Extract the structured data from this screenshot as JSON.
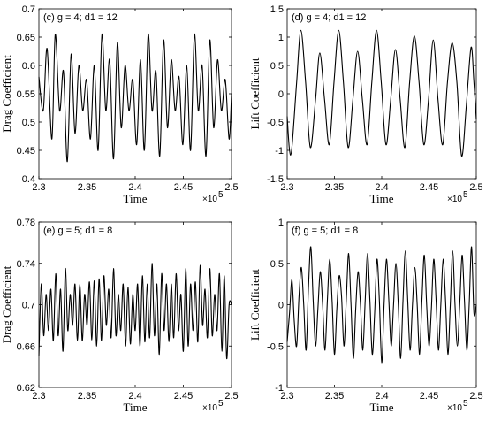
{
  "chart_data": [
    {
      "type": "line",
      "panel_label": "(c) g = 4; d1 = 12",
      "xlabel": "Time",
      "ylabel": "Drag Coefficient",
      "xlim": [
        2.3,
        2.5
      ],
      "ylim": [
        0.4,
        0.7
      ],
      "x_multiplier": "×10",
      "x_exponent": "5",
      "xticks": [
        "2.3",
        "2.35",
        "2.4",
        "2.45",
        "2.5"
      ],
      "yticks": [
        "0.4",
        "0.45",
        "0.5",
        "0.55",
        "0.6",
        "0.65",
        "0.7"
      ],
      "series": [
        {
          "x": [
            2.3,
            2.3045,
            2.3085,
            2.3135,
            2.317,
            2.3215,
            2.3255,
            2.3295,
            2.3335,
            2.3375,
            2.3415,
            2.3455,
            2.3495,
            2.3535,
            2.3575,
            2.3615,
            2.3655,
            2.3695,
            2.3735,
            2.3775,
            2.3815,
            2.3855,
            2.3895,
            2.3935,
            2.3975,
            2.4015,
            2.4055,
            2.4095,
            2.4135,
            2.4175,
            2.4215,
            2.4255,
            2.4295,
            2.4335,
            2.4375,
            2.4415,
            2.4455,
            2.4495,
            2.4535,
            2.4575,
            2.4615,
            2.4655,
            2.4695,
            2.4735,
            2.4775,
            2.4815,
            2.4855,
            2.4895,
            2.4935,
            2.4975,
            2.5
          ],
          "y": [
            0.58,
            0.52,
            0.63,
            0.47,
            0.655,
            0.52,
            0.59,
            0.43,
            0.62,
            0.48,
            0.6,
            0.52,
            0.575,
            0.47,
            0.6,
            0.45,
            0.655,
            0.52,
            0.61,
            0.435,
            0.64,
            0.49,
            0.6,
            0.52,
            0.575,
            0.46,
            0.61,
            0.45,
            0.655,
            0.52,
            0.59,
            0.44,
            0.645,
            0.49,
            0.61,
            0.52,
            0.58,
            0.46,
            0.6,
            0.45,
            0.655,
            0.52,
            0.6,
            0.44,
            0.645,
            0.49,
            0.61,
            0.52,
            0.575,
            0.47,
            0.55
          ]
        }
      ]
    },
    {
      "type": "line",
      "panel_label": "(d) g = 4; d1 = 12",
      "xlabel": "Time",
      "ylabel": "Lift Coefficient",
      "xlim": [
        2.3,
        2.5
      ],
      "ylim": [
        -1.5,
        1.5
      ],
      "x_multiplier": "×10",
      "x_exponent": "5",
      "xticks": [
        "2.3",
        "2.35",
        "2.4",
        "2.45",
        "2.5"
      ],
      "yticks": [
        "-1.5",
        "-1",
        "-0.5",
        "0",
        "0.5",
        "1",
        "1.5"
      ],
      "series": [
        {
          "x": [
            2.3,
            2.3025,
            2.305,
            2.31,
            2.3145,
            2.3195,
            2.3245,
            2.33,
            2.3345,
            2.3395,
            2.3445,
            2.3495,
            2.3545,
            2.3595,
            2.3645,
            2.3695,
            2.3745,
            2.3795,
            2.3845,
            2.3895,
            2.3945,
            2.3995,
            2.4045,
            2.4095,
            2.4145,
            2.4195,
            2.4245,
            2.4295,
            2.4345,
            2.4395,
            2.4445,
            2.4495,
            2.4545,
            2.4595,
            2.4645,
            2.4695,
            2.4745,
            2.4795,
            2.4845,
            2.4895,
            2.4945,
            2.4975,
            2.5
          ],
          "y": [
            -0.4,
            -1.0,
            -0.95,
            0.2,
            1.12,
            0.2,
            -0.95,
            -0.1,
            0.72,
            -0.1,
            -0.9,
            0.2,
            1.12,
            0.2,
            -0.95,
            -0.1,
            0.75,
            -0.1,
            -0.9,
            0.2,
            1.12,
            0.2,
            -0.9,
            -0.1,
            0.78,
            -0.1,
            -0.95,
            0.2,
            1.02,
            0.2,
            -0.9,
            -0.1,
            0.95,
            -0.1,
            -0.9,
            0.2,
            0.9,
            0.2,
            -1.1,
            -0.2,
            0.82,
            0.2,
            -0.45
          ]
        }
      ]
    },
    {
      "type": "line",
      "panel_label": "(e) g = 5; d1 = 8",
      "xlabel": "Time",
      "ylabel": "Drag Coefficient",
      "xlim": [
        2.3,
        2.5
      ],
      "ylim": [
        0.62,
        0.78
      ],
      "x_multiplier": "×10",
      "x_exponent": "5",
      "xticks": [
        "2.3",
        "2.35",
        "2.4",
        "2.45",
        "2.5"
      ],
      "yticks": [
        "0.62",
        "0.66",
        "0.7",
        "0.74",
        "0.78"
      ],
      "series": [
        {
          "x": [
            2.3,
            2.3025,
            2.305,
            2.3075,
            2.31,
            2.3125,
            2.315,
            2.3175,
            2.32,
            2.3225,
            2.325,
            2.3275,
            2.33,
            2.3325,
            2.335,
            2.3375,
            2.34,
            2.3425,
            2.345,
            2.3475,
            2.35,
            2.3525,
            2.355,
            2.3575,
            2.36,
            2.3625,
            2.365,
            2.3675,
            2.37,
            2.3725,
            2.375,
            2.3775,
            2.38,
            2.3825,
            2.385,
            2.3875,
            2.39,
            2.3925,
            2.395,
            2.3975,
            2.4,
            2.4025,
            2.405,
            2.4075,
            2.41,
            2.4125,
            2.415,
            2.4175,
            2.42,
            2.4225,
            2.425,
            2.4275,
            2.43,
            2.4325,
            2.435,
            2.4375,
            2.44,
            2.4425,
            2.445,
            2.4475,
            2.45,
            2.4525,
            2.455,
            2.4575,
            2.46,
            2.4625,
            2.465,
            2.4675,
            2.47,
            2.4725,
            2.475,
            2.4775,
            2.48,
            2.4825,
            2.485,
            2.4875,
            2.49,
            2.4925,
            2.495,
            2.4975,
            2.5
          ],
          "y": [
            0.65,
            0.72,
            0.67,
            0.71,
            0.675,
            0.715,
            0.665,
            0.73,
            0.67,
            0.715,
            0.655,
            0.735,
            0.675,
            0.71,
            0.68,
            0.72,
            0.665,
            0.72,
            0.665,
            0.71,
            0.68,
            0.722,
            0.666,
            0.723,
            0.66,
            0.725,
            0.665,
            0.728,
            0.68,
            0.715,
            0.668,
            0.735,
            0.67,
            0.71,
            0.675,
            0.72,
            0.66,
            0.717,
            0.662,
            0.71,
            0.675,
            0.72,
            0.66,
            0.728,
            0.664,
            0.72,
            0.668,
            0.74,
            0.67,
            0.72,
            0.652,
            0.73,
            0.675,
            0.72,
            0.664,
            0.72,
            0.668,
            0.73,
            0.675,
            0.71,
            0.655,
            0.735,
            0.66,
            0.72,
            0.675,
            0.722,
            0.664,
            0.738,
            0.68,
            0.715,
            0.668,
            0.735,
            0.67,
            0.71,
            0.675,
            0.73,
            0.655,
            0.728,
            0.648,
            0.7,
            0.7
          ]
        }
      ]
    },
    {
      "type": "line",
      "panel_label": "(f) g = 5; d1 = 8",
      "xlabel": "Time",
      "ylabel": "Lift Coefficient",
      "xlim": [
        2.3,
        2.5
      ],
      "ylim": [
        -1,
        1
      ],
      "x_multiplier": "×10",
      "x_exponent": "5",
      "xticks": [
        "2.3",
        "2.35",
        "2.4",
        "2.45",
        "2.5"
      ],
      "yticks": [
        "-1",
        "-0.5",
        "0",
        "0.5",
        "1"
      ],
      "series": [
        {
          "x": [
            2.3,
            2.3025,
            2.305,
            2.3075,
            2.31,
            2.3125,
            2.315,
            2.3175,
            2.32,
            2.3225,
            2.325,
            2.3275,
            2.33,
            2.3325,
            2.335,
            2.3375,
            2.34,
            2.3425,
            2.345,
            2.3475,
            2.35,
            2.3525,
            2.355,
            2.3575,
            2.36,
            2.3625,
            2.365,
            2.3675,
            2.37,
            2.3725,
            2.375,
            2.3775,
            2.38,
            2.3825,
            2.385,
            2.3875,
            2.39,
            2.3925,
            2.395,
            2.3975,
            2.4,
            2.4025,
            2.405,
            2.4075,
            2.41,
            2.4125,
            2.415,
            2.4175,
            2.42,
            2.4225,
            2.425,
            2.4275,
            2.43,
            2.4325,
            2.435,
            2.4375,
            2.44,
            2.4425,
            2.445,
            2.4475,
            2.45,
            2.4525,
            2.455,
            2.4575,
            2.46,
            2.4625,
            2.465,
            2.4675,
            2.47,
            2.4725,
            2.475,
            2.4775,
            2.48,
            2.4825,
            2.485,
            2.4875,
            2.49,
            2.4925,
            2.495,
            2.4975,
            2.5
          ],
          "y": [
            -0.45,
            -0.1,
            0.3,
            -0.2,
            -0.5,
            0.1,
            0.45,
            0.0,
            -0.55,
            0.2,
            0.7,
            0.05,
            -0.5,
            -0.05,
            0.4,
            0.0,
            -0.55,
            0.05,
            0.55,
            0.05,
            -0.6,
            -0.05,
            0.35,
            0.1,
            -0.5,
            0.05,
            0.62,
            0.0,
            -0.65,
            -0.05,
            0.4,
            0.0,
            -0.55,
            0.05,
            0.62,
            0.05,
            -0.6,
            -0.1,
            0.55,
            0.05,
            -0.7,
            0.0,
            0.55,
            0.05,
            -0.5,
            0.0,
            0.5,
            0.0,
            -0.65,
            0.05,
            0.65,
            0.05,
            -0.55,
            0.0,
            0.45,
            0.0,
            -0.6,
            0.05,
            0.6,
            0.0,
            -0.5,
            -0.05,
            0.55,
            0.05,
            -0.55,
            0.0,
            0.55,
            0.05,
            -0.6,
            0.0,
            0.65,
            0.0,
            -0.5,
            0.0,
            0.6,
            0.05,
            -0.55,
            0.0,
            0.7,
            -0.1,
            0.0
          ]
        }
      ]
    }
  ]
}
